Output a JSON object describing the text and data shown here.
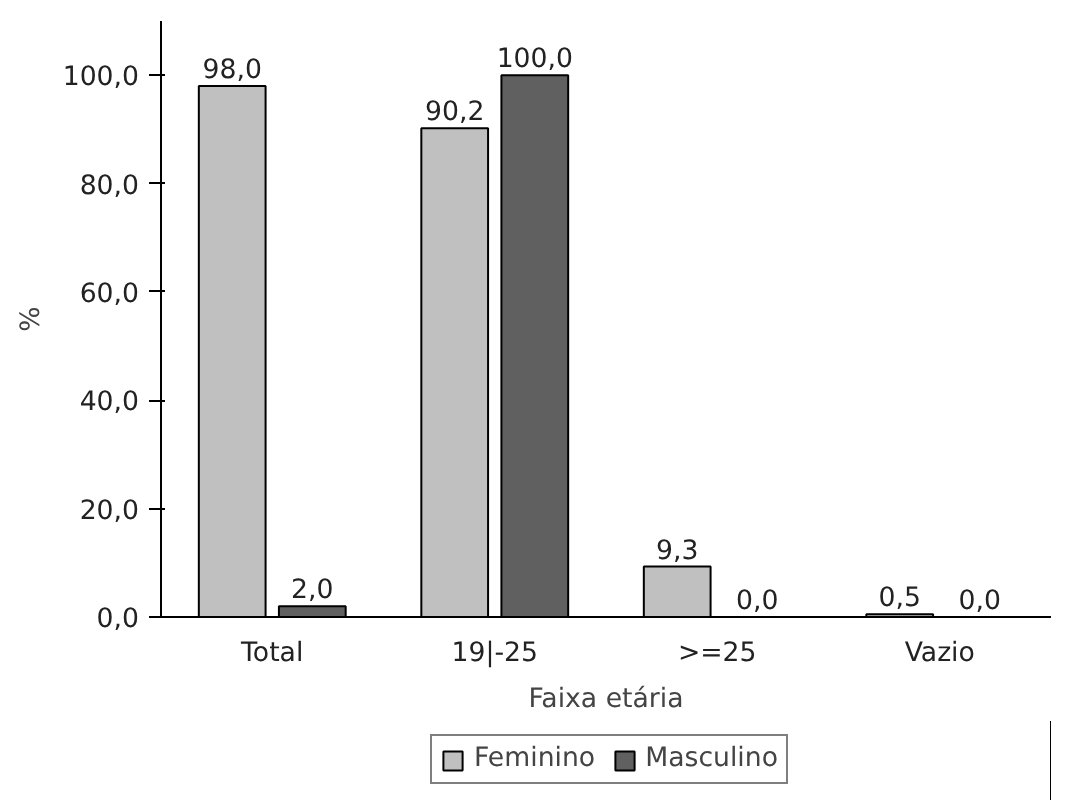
{
  "chart_data": {
    "type": "bar",
    "xlabel": "Faixa etária",
    "ylabel": "%",
    "categories": [
      "Total",
      "19|-25",
      ">=25",
      "Vazio"
    ],
    "series": [
      {
        "name": "Feminino",
        "color": "#c0c0c0",
        "values": [
          98.0,
          90.2,
          9.3,
          0.5
        ],
        "value_labels": [
          "98,0",
          "90,2",
          "9,3",
          "0,5"
        ]
      },
      {
        "name": "Masculino",
        "color": "#606060",
        "values": [
          2.0,
          100.0,
          0.0,
          0.0
        ],
        "value_labels": [
          "2,0",
          "100,0",
          "0,0",
          "0,0"
        ]
      }
    ],
    "ylim": [
      0,
      110
    ],
    "yticks": [
      {
        "value": 0,
        "label": "0,0"
      },
      {
        "value": 20,
        "label": "20,0"
      },
      {
        "value": 40,
        "label": "40,0"
      },
      {
        "value": 60,
        "label": "60,0"
      },
      {
        "value": 80,
        "label": "80,0"
      },
      {
        "value": 100,
        "label": "100,0"
      }
    ],
    "grid": false,
    "legend": "bottom"
  }
}
